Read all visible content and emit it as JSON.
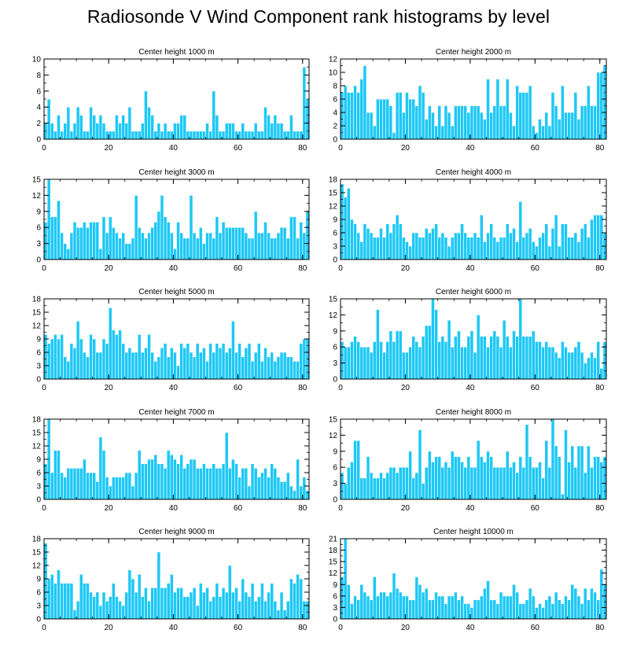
{
  "figure_title": "Radiosonde V Wind Component rank histograms by level",
  "colors": {
    "bar": "#1ec8f5",
    "bar_edge": "#ffffff",
    "axis": "#000000",
    "background": "#ffffff"
  },
  "chart_data": [
    {
      "type": "bar",
      "title": "Center height 1000 m",
      "xlim": [
        0,
        82
      ],
      "ylim": [
        0,
        10
      ],
      "xticks": [
        0,
        20,
        40,
        60,
        80
      ],
      "yticks": [
        0,
        2,
        4,
        6,
        8,
        10
      ],
      "values": [
        2,
        5,
        2,
        1,
        3,
        1,
        2,
        4,
        1,
        2,
        4,
        3,
        1,
        1,
        4,
        3,
        2,
        3,
        2,
        1,
        1,
        1,
        3,
        2,
        3,
        2,
        4,
        1,
        1,
        1,
        2,
        6,
        4,
        3,
        1,
        2,
        1,
        2,
        1,
        1,
        2,
        2,
        3,
        3,
        1,
        1,
        1,
        1,
        1,
        1,
        2,
        1,
        6,
        3,
        1,
        1,
        2,
        2,
        2,
        1,
        1,
        2,
        1,
        1,
        1,
        2,
        1,
        1,
        4,
        3,
        2,
        3,
        2,
        2,
        1,
        1,
        3,
        1,
        1,
        1,
        9,
        5
      ]
    },
    {
      "type": "bar",
      "title": "Center height 2000 m",
      "xlim": [
        0,
        82
      ],
      "ylim": [
        0,
        12
      ],
      "xticks": [
        0,
        20,
        40,
        60,
        80
      ],
      "yticks": [
        0,
        2,
        4,
        6,
        8,
        10,
        12
      ],
      "values": [
        7,
        8,
        7,
        7,
        8,
        7,
        9,
        11,
        4,
        4,
        2,
        6,
        6,
        6,
        6,
        5,
        1,
        7,
        7,
        4,
        7,
        6,
        6,
        5,
        8,
        7,
        3,
        5,
        4,
        2,
        5,
        2,
        5,
        4,
        2,
        5,
        5,
        5,
        5,
        4,
        5,
        5,
        5,
        4,
        3,
        9,
        4,
        5,
        9,
        5,
        5,
        9,
        4,
        2,
        8,
        7,
        7,
        7,
        8,
        2,
        1,
        3,
        2,
        4,
        2,
        7,
        5,
        3,
        8,
        4,
        4,
        4,
        7,
        3,
        5,
        5,
        8,
        5,
        5,
        10,
        10,
        11
      ]
    },
    {
      "type": "bar",
      "title": "Center height 3000 m",
      "xlim": [
        0,
        82
      ],
      "ylim": [
        0,
        15
      ],
      "xticks": [
        0,
        20,
        40,
        60,
        80
      ],
      "yticks": [
        0,
        3,
        6,
        9,
        12,
        15
      ],
      "values": [
        7,
        15,
        8,
        8,
        11,
        5,
        3,
        2,
        5,
        7,
        6,
        6,
        7,
        6,
        7,
        7,
        7,
        2,
        8,
        5,
        8,
        6,
        5,
        4,
        5,
        3,
        3,
        4,
        12,
        6,
        5,
        4,
        5,
        6,
        7,
        9,
        12,
        8,
        7,
        5,
        2,
        7,
        5,
        4,
        4,
        12,
        5,
        4,
        6,
        3,
        5,
        5,
        4,
        8,
        5,
        7,
        6,
        6,
        6,
        6,
        6,
        6,
        5,
        4,
        4,
        9,
        5,
        5,
        7,
        5,
        4,
        4,
        5,
        6,
        6,
        4,
        8,
        8,
        4,
        7,
        5,
        9
      ]
    },
    {
      "type": "bar",
      "title": "Center height 4000 m",
      "xlim": [
        0,
        82
      ],
      "ylim": [
        0,
        18
      ],
      "xticks": [
        0,
        20,
        40,
        60,
        80
      ],
      "yticks": [
        0,
        3,
        6,
        9,
        12,
        15,
        18
      ],
      "values": [
        17,
        14,
        16,
        9,
        8,
        6,
        4,
        8,
        7,
        6,
        5,
        5,
        7,
        5,
        8,
        6,
        8,
        10,
        8,
        5,
        4,
        3,
        6,
        6,
        5,
        5,
        7,
        6,
        7,
        8,
        5,
        6,
        5,
        3,
        5,
        6,
        6,
        8,
        6,
        5,
        5,
        6,
        5,
        10,
        4,
        6,
        8,
        5,
        4,
        5,
        5,
        8,
        6,
        7,
        4,
        13,
        5,
        6,
        7,
        4,
        3,
        5,
        6,
        8,
        3,
        7,
        10,
        3,
        8,
        8,
        5,
        5,
        6,
        4,
        7,
        8,
        5,
        9,
        10,
        10,
        10,
        6
      ]
    },
    {
      "type": "bar",
      "title": "Center height 5000 m",
      "xlim": [
        0,
        82
      ],
      "ylim": [
        0,
        18
      ],
      "xticks": [
        0,
        20,
        40,
        60,
        80
      ],
      "yticks": [
        0,
        3,
        6,
        9,
        12,
        15,
        18
      ],
      "values": [
        10,
        8,
        9,
        10,
        9,
        10,
        5,
        4,
        8,
        7,
        13,
        9,
        6,
        5,
        10,
        9,
        6,
        6,
        9,
        8,
        16,
        11,
        10,
        11,
        8,
        6,
        7,
        6,
        6,
        10,
        6,
        7,
        10,
        6,
        4,
        5,
        7,
        8,
        5,
        7,
        6,
        3,
        8,
        7,
        8,
        6,
        5,
        8,
        6,
        7,
        4,
        8,
        6,
        8,
        7,
        8,
        6,
        7,
        13,
        6,
        8,
        5,
        7,
        8,
        4,
        6,
        8,
        4,
        7,
        5,
        6,
        4,
        5,
        6,
        6,
        5,
        5,
        4,
        4,
        8,
        9,
        9
      ]
    },
    {
      "type": "bar",
      "title": "Center height 6000 m",
      "xlim": [
        0,
        82
      ],
      "ylim": [
        0,
        15
      ],
      "xticks": [
        0,
        20,
        40,
        60,
        80
      ],
      "yticks": [
        0,
        3,
        6,
        9,
        12,
        15
      ],
      "values": [
        7,
        6,
        6,
        7,
        8,
        7,
        6,
        6,
        6,
        5,
        7,
        13,
        7,
        5,
        7,
        9,
        7,
        9,
        9,
        5,
        5,
        6,
        8,
        7,
        6,
        8,
        10,
        10,
        15,
        13,
        7,
        8,
        7,
        11,
        6,
        8,
        9,
        6,
        6,
        8,
        9,
        5,
        12,
        8,
        8,
        6,
        8,
        9,
        8,
        6,
        11,
        8,
        6,
        9,
        8,
        15,
        8,
        8,
        8,
        9,
        7,
        7,
        6,
        7,
        6,
        6,
        5,
        4,
        7,
        6,
        5,
        5,
        6,
        7,
        5,
        3,
        4,
        5,
        4,
        7,
        2,
        7
      ]
    },
    {
      "type": "bar",
      "title": "Center height 7000 m",
      "xlim": [
        0,
        82
      ],
      "ylim": [
        0,
        18
      ],
      "xticks": [
        0,
        20,
        40,
        60,
        80
      ],
      "yticks": [
        0,
        3,
        6,
        9,
        12,
        15,
        18
      ],
      "values": [
        8,
        18,
        6,
        11,
        11,
        6,
        5,
        7,
        7,
        7,
        7,
        7,
        9,
        6,
        6,
        6,
        4,
        14,
        11,
        5,
        3,
        5,
        5,
        5,
        5,
        6,
        6,
        3,
        6,
        11,
        8,
        8,
        9,
        9,
        10,
        8,
        8,
        7,
        11,
        10,
        9,
        8,
        10,
        7,
        8,
        9,
        9,
        7,
        7,
        8,
        7,
        7,
        8,
        7,
        7,
        8,
        15,
        7,
        9,
        8,
        5,
        7,
        7,
        3,
        8,
        7,
        5,
        6,
        7,
        5,
        8,
        7,
        5,
        4,
        4,
        6,
        3,
        2,
        9,
        3,
        5,
        2
      ]
    },
    {
      "type": "bar",
      "title": "Center height 8000 m",
      "xlim": [
        0,
        82
      ],
      "ylim": [
        0,
        15
      ],
      "xticks": [
        0,
        20,
        40,
        60,
        80
      ],
      "yticks": [
        0,
        3,
        6,
        9,
        12,
        15
      ],
      "values": [
        5,
        3,
        6,
        7,
        11,
        11,
        4,
        4,
        8,
        5,
        4,
        4,
        5,
        4,
        5,
        6,
        6,
        5,
        6,
        6,
        6,
        9,
        4,
        5,
        13,
        3,
        6,
        9,
        7,
        8,
        8,
        6,
        7,
        6,
        9,
        8,
        8,
        7,
        6,
        8,
        6,
        6,
        11,
        8,
        7,
        9,
        8,
        6,
        6,
        6,
        6,
        9,
        6,
        7,
        5,
        8,
        6,
        14,
        8,
        6,
        6,
        7,
        4,
        11,
        6,
        15,
        10,
        8,
        1,
        13,
        7,
        10,
        6,
        10,
        10,
        5,
        10,
        6,
        8,
        8,
        7,
        8
      ]
    },
    {
      "type": "bar",
      "title": "Center height 9000 m",
      "xlim": [
        0,
        82
      ],
      "ylim": [
        0,
        18
      ],
      "xticks": [
        0,
        20,
        40,
        60,
        80
      ],
      "yticks": [
        0,
        3,
        6,
        9,
        12,
        15,
        18
      ],
      "values": [
        17,
        9,
        10,
        8,
        11,
        8,
        8,
        8,
        8,
        2,
        4,
        10,
        8,
        8,
        6,
        5,
        6,
        3,
        6,
        4,
        5,
        8,
        5,
        4,
        3,
        6,
        11,
        9,
        6,
        10,
        5,
        7,
        4,
        7,
        7,
        15,
        7,
        7,
        8,
        10,
        6,
        7,
        7,
        5,
        5,
        6,
        7,
        3,
        8,
        6,
        7,
        4,
        5,
        8,
        5,
        7,
        6,
        12,
        6,
        7,
        4,
        9,
        6,
        5,
        8,
        4,
        5,
        8,
        4,
        6,
        8,
        4,
        2,
        6,
        2,
        4,
        9,
        8,
        10,
        9,
        4,
        4
      ]
    },
    {
      "type": "bar",
      "title": "Center height 10000 m",
      "xlim": [
        0,
        82
      ],
      "ylim": [
        0,
        21
      ],
      "xticks": [
        0,
        20,
        40,
        60,
        80
      ],
      "yticks": [
        0,
        3,
        6,
        9,
        12,
        15,
        18,
        21
      ],
      "values": [
        11,
        21,
        9,
        4,
        6,
        5,
        9,
        7,
        6,
        5,
        11,
        6,
        7,
        7,
        6,
        7,
        12,
        8,
        7,
        6,
        6,
        5,
        5,
        11,
        9,
        7,
        8,
        5,
        5,
        7,
        6,
        6,
        4,
        6,
        6,
        7,
        5,
        6,
        4,
        4,
        3,
        5,
        5,
        6,
        8,
        10,
        5,
        5,
        4,
        7,
        6,
        6,
        6,
        9,
        7,
        4,
        4,
        5,
        8,
        6,
        3,
        4,
        3,
        5,
        6,
        4,
        7,
        5,
        4,
        6,
        5,
        9,
        8,
        6,
        4,
        8,
        5,
        8,
        7,
        5,
        13,
        9
      ]
    }
  ]
}
